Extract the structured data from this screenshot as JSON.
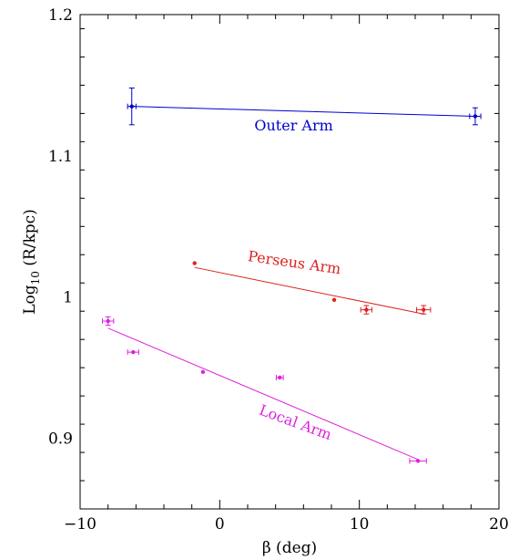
{
  "chart_data": {
    "type": "scatter",
    "xlabel": "β (deg)",
    "ylabel": {
      "prefix": "Log",
      "subscript": "10",
      "suffix": " (R/kpc)"
    },
    "xlim": [
      -10,
      20
    ],
    "ylim": [
      0.85,
      1.2
    ],
    "xticks": [
      -10,
      0,
      10,
      20
    ],
    "xtick_labels": [
      "−10",
      "0",
      "10",
      "20"
    ],
    "yticks": [
      0.9,
      1.0,
      1.1,
      1.2
    ],
    "ytick_labels": [
      "0.9",
      "1",
      "1.1",
      "1.2"
    ],
    "grid": false,
    "series": [
      {
        "name": "Outer Arm",
        "color": "#0000cc",
        "points": [
          {
            "x": -6.3,
            "y": 1.135,
            "xerr": 0.3,
            "yerr": 0.013
          },
          {
            "x": 18.3,
            "y": 1.128,
            "xerr": 0.4,
            "yerr": 0.006
          }
        ],
        "fit": [
          [
            -6.3,
            1.135
          ],
          [
            18.3,
            1.128
          ]
        ]
      },
      {
        "name": "Perseus Arm",
        "color": "#dd2222",
        "points": [
          {
            "x": -1.8,
            "y": 1.024,
            "xerr": 0,
            "yerr": 0
          },
          {
            "x": 8.2,
            "y": 0.998,
            "xerr": 0,
            "yerr": 0
          },
          {
            "x": 10.5,
            "y": 0.991,
            "xerr": 0.4,
            "yerr": 0.003
          },
          {
            "x": 14.6,
            "y": 0.991,
            "xerr": 0.5,
            "yerr": 0.003
          }
        ],
        "fit": [
          [
            -1.8,
            1.021
          ],
          [
            14.6,
            0.988
          ]
        ]
      },
      {
        "name": "Local Arm",
        "color": "#dd22dd",
        "points": [
          {
            "x": -8.0,
            "y": 0.983,
            "xerr": 0.4,
            "yerr": 0.003
          },
          {
            "x": -6.2,
            "y": 0.961,
            "xerr": 0.4,
            "yerr": 0
          },
          {
            "x": -1.2,
            "y": 0.947,
            "xerr": 0,
            "yerr": 0
          },
          {
            "x": 4.3,
            "y": 0.943,
            "xerr": 0.25,
            "yerr": 0
          },
          {
            "x": 14.2,
            "y": 0.884,
            "xerr": 0.6,
            "yerr": 0
          }
        ],
        "fit": [
          [
            -8.0,
            0.978
          ],
          [
            14.2,
            0.885
          ]
        ]
      }
    ],
    "annotations": [
      {
        "text": "Outer Arm",
        "x": 5.3,
        "y": 1.118,
        "rotate": 0,
        "color": "#0000cc"
      },
      {
        "text": "Perseus Arm",
        "x": 5.3,
        "y": 1.021,
        "rotate": 8,
        "color": "#dd2222"
      },
      {
        "text": "Local Arm",
        "x": 5.3,
        "y": 0.908,
        "rotate": 20,
        "color": "#dd22dd"
      }
    ]
  }
}
